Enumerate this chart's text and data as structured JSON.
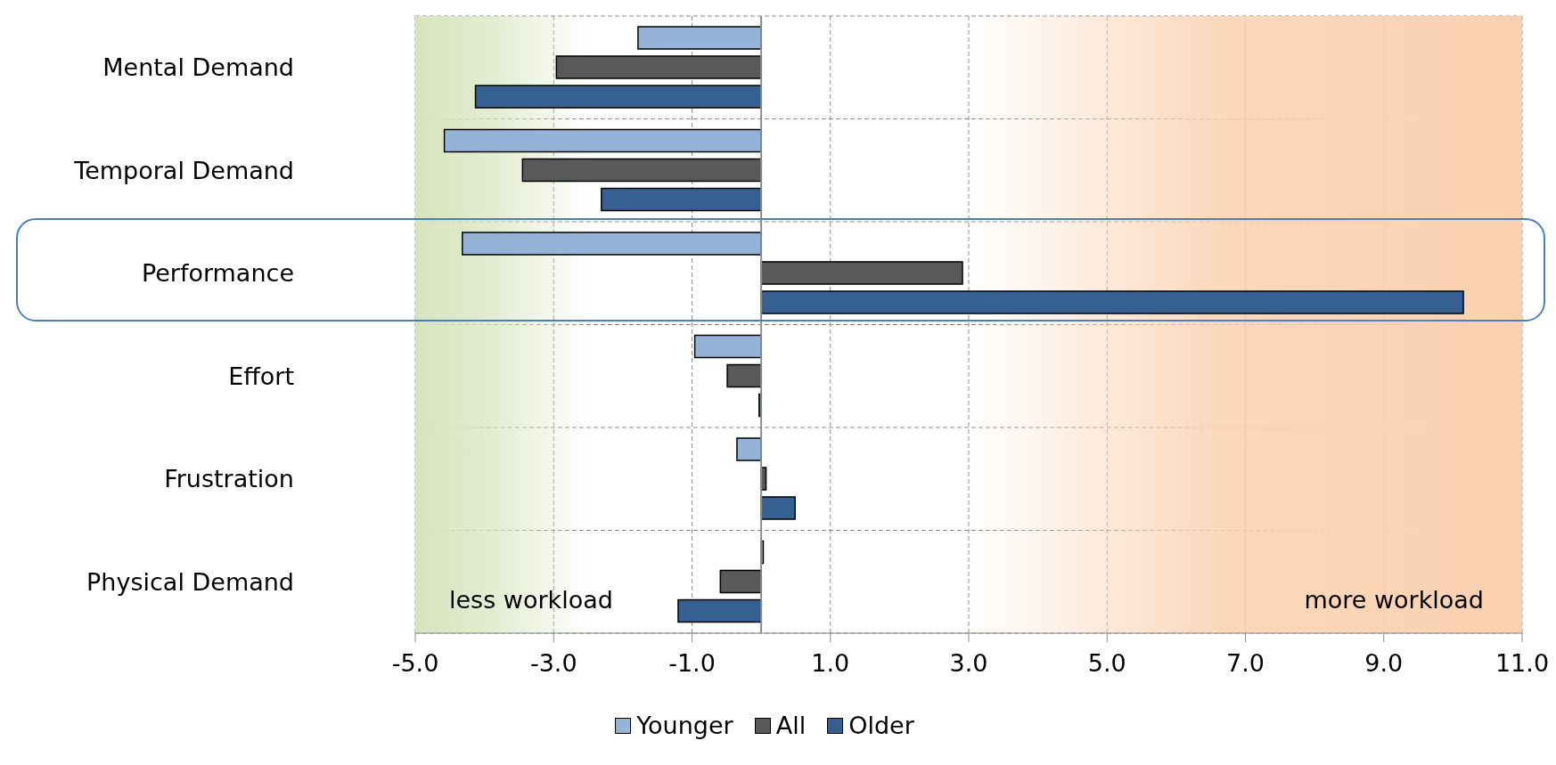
{
  "chart_data": {
    "type": "bar",
    "orientation": "horizontal",
    "categories": [
      "Mental Demand",
      "Temporal Demand",
      "Performance",
      "Effort",
      "Frustration",
      "Physical Demand"
    ],
    "series": [
      {
        "name": "Younger",
        "color": "#95b3d7",
        "values": [
          -1.78,
          -4.58,
          -4.32,
          -0.96,
          -0.35,
          0.03
        ]
      },
      {
        "name": "All",
        "color": "#595959",
        "values": [
          -2.96,
          -3.45,
          2.91,
          -0.49,
          0.07,
          -0.59
        ]
      },
      {
        "name": "Older",
        "color": "#366092",
        "values": [
          -4.13,
          -2.31,
          10.15,
          -0.03,
          0.49,
          -1.2
        ]
      }
    ],
    "xlim": [
      -5,
      11
    ],
    "xticks": [
      {
        "value": -5,
        "label": "-5.0"
      },
      {
        "value": -3,
        "label": "-3.0"
      },
      {
        "value": -1,
        "label": "-1.0"
      },
      {
        "value": 1,
        "label": "1.0"
      },
      {
        "value": 3,
        "label": "3.0"
      },
      {
        "value": 5,
        "label": "5.0"
      },
      {
        "value": 7,
        "label": "7.0"
      },
      {
        "value": 9,
        "label": "9.0"
      },
      {
        "value": 11,
        "label": "11.0"
      }
    ],
    "bands": [
      {
        "axis": "x",
        "from": -5,
        "to": -2.5,
        "label": "less workload",
        "color": "#d7e4bd"
      },
      {
        "axis": "x",
        "from": 3,
        "to": 11,
        "label": "more workload",
        "color": "#fad1b0"
      }
    ],
    "grid": true,
    "legend": "bottom"
  }
}
